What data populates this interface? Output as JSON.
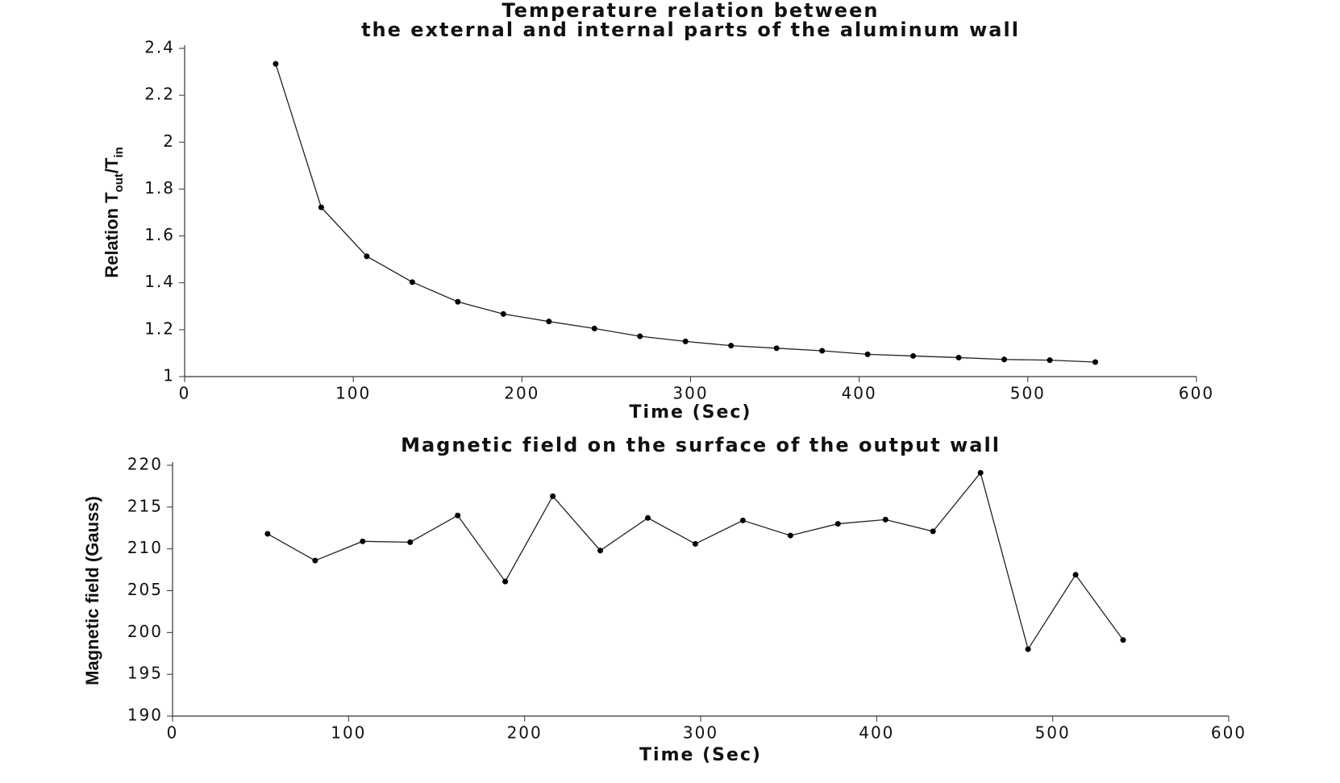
{
  "chart_data": [
    {
      "type": "line",
      "title": [
        "Temperature relation between",
        "the external and internal parts of the aluminum wall"
      ],
      "xlabel": "Time (Sec)",
      "ylabel": [
        "Relation T",
        "out",
        "/T",
        "in"
      ],
      "x": [
        54,
        81,
        108,
        135,
        162,
        189,
        216,
        243,
        270,
        297,
        324,
        351,
        378,
        405,
        432,
        459,
        486,
        513,
        540
      ],
      "series": [
        {
          "color": "#222222",
          "values": [
            2.334,
            1.722,
            1.513,
            1.403,
            1.319,
            1.267,
            1.235,
            1.205,
            1.172,
            1.15,
            1.132,
            1.121,
            1.11,
            1.095,
            1.088,
            1.081,
            1.073,
            1.07,
            1.062
          ]
        }
      ],
      "xlim": [
        0,
        600
      ],
      "xticks": [
        0,
        100,
        200,
        300,
        400,
        500,
        600
      ],
      "ylim": [
        1,
        2.4
      ],
      "yticks": [
        1,
        1.2,
        1.4,
        1.6,
        1.8,
        2,
        2.2,
        2.4
      ],
      "markers": true
    },
    {
      "type": "line",
      "title": [
        "Magnetic field on the surface of the output wall"
      ],
      "xlabel": "Time (Sec)",
      "ylabel": [
        "Magnetic field (Gauss)"
      ],
      "x": [
        54,
        81,
        108,
        135,
        162,
        189,
        216,
        243,
        270,
        297,
        324,
        351,
        378,
        405,
        432,
        459,
        486,
        513,
        540
      ],
      "series": [
        {
          "color": "#222222",
          "values": [
            211.8,
            208.6,
            210.9,
            210.8,
            214.0,
            206.1,
            216.3,
            209.8,
            213.7,
            210.6,
            213.4,
            211.6,
            213.0,
            213.5,
            212.1,
            219.1,
            198.0,
            206.9,
            199.1
          ]
        }
      ],
      "xlim": [
        0,
        600
      ],
      "xticks": [
        0,
        100,
        200,
        300,
        400,
        500,
        600
      ],
      "ylim": [
        190,
        220
      ],
      "yticks": [
        190,
        195,
        200,
        205,
        210,
        215,
        220
      ],
      "markers": true
    }
  ]
}
